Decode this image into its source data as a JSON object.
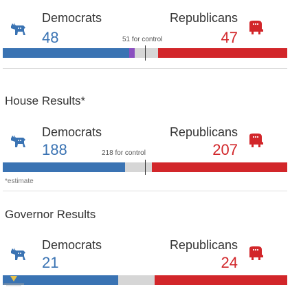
{
  "colors": {
    "democrat": "#3a73b3",
    "republican": "#d2262a",
    "independent": "#8a4fbf",
    "uncalled": "#d6d6d6"
  },
  "icons": {
    "democrat": "donkey-icon",
    "republican": "elephant-icon"
  },
  "senate": {
    "dem_label": "Democrats",
    "rep_label": "Republicans",
    "dem_seats": "48",
    "rep_seats": "47",
    "control_text": "51 for control",
    "dem_fill": 0.445,
    "independent_fill": 0.02,
    "rep_fill": 0.455,
    "control_position": 0.5
  },
  "house": {
    "title": "House Results*",
    "dem_label": "Democrats",
    "rep_label": "Republicans",
    "dem_seats": "188",
    "rep_seats": "207",
    "control_text": "218 for control",
    "dem_fill": 0.43,
    "rep_fill": 0.475,
    "control_position": 0.5,
    "footnote": "*estimate"
  },
  "governor": {
    "title": "Governor Results",
    "dem_label": "Democrats",
    "rep_label": "Republicans",
    "dem_seats": "21",
    "rep_seats": "24",
    "dem_fill": 0.405,
    "rep_fill": 0.466
  }
}
